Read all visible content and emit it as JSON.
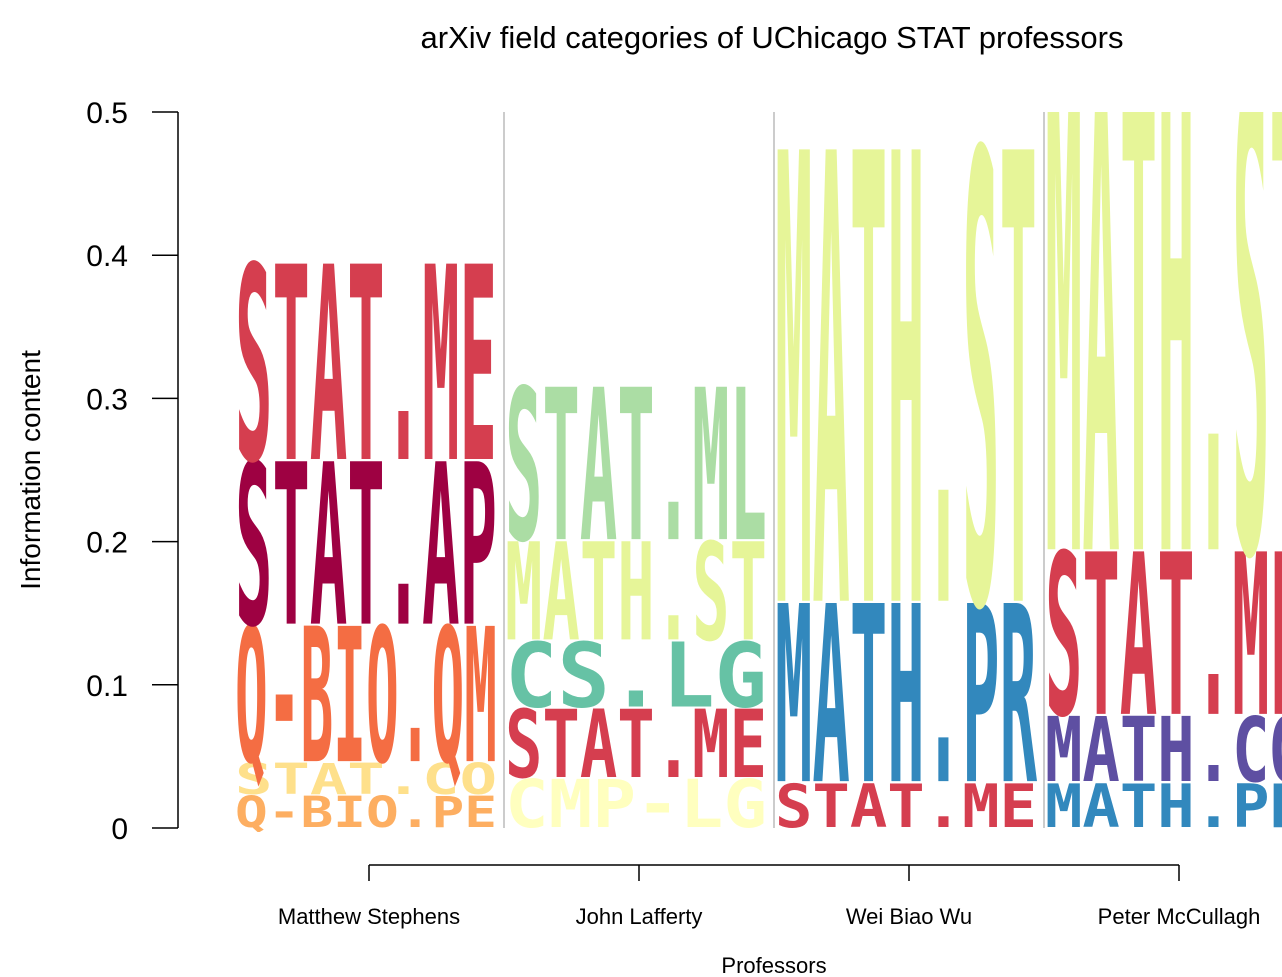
{
  "chart_data": {
    "type": "logo",
    "title": "arXiv field categories of UChicago STAT professors",
    "x_label": "Professors",
    "y_label": "Information content",
    "ylim": [
      0,
      0.5
    ],
    "yticks": [
      0,
      0.1,
      0.2,
      0.3,
      0.4,
      0.5
    ],
    "categories": [
      "Matthew Stephens",
      "John Lafferty",
      "Wei Biao Wu",
      "Peter McCullagh"
    ],
    "stacks": [
      [
        {
          "name": "Q-BIO.PE",
          "color": "#fdae61",
          "value": 0.023
        },
        {
          "name": "STAT.CO",
          "color": "#fee08b",
          "value": 0.023
        },
        {
          "name": "Q-BIO.QM",
          "color": "#f46d43",
          "value": 0.096
        },
        {
          "name": "STAT.AP",
          "color": "#9e0142",
          "value": 0.115
        },
        {
          "name": "STAT.ME",
          "color": "#d53e4f",
          "value": 0.138
        }
      ],
      [
        {
          "name": "CMP-LG",
          "color": "#ffffbf",
          "value": 0.035
        },
        {
          "name": "STAT.ME",
          "color": "#d53e4f",
          "value": 0.049
        },
        {
          "name": "CS.LG",
          "color": "#66c2a5",
          "value": 0.047
        },
        {
          "name": "MATH.ST",
          "color": "#e6f598",
          "value": 0.07
        },
        {
          "name": "STAT.ML",
          "color": "#abdda4",
          "value": 0.108
        }
      ],
      [
        {
          "name": "STAT.ME",
          "color": "#d53e4f",
          "value": 0.032
        },
        {
          "name": "MATH.PR",
          "color": "#3288bd",
          "value": 0.126
        },
        {
          "name": "MATH.ST",
          "color": "#e6f598",
          "value": 0.317
        }
      ],
      [
        {
          "name": "MATH.PR",
          "color": "#3288bd",
          "value": 0.032
        },
        {
          "name": "MATH.CO",
          "color": "#5e4fa2",
          "value": 0.047
        },
        {
          "name": "STAT.ME",
          "color": "#d53e4f",
          "value": 0.115
        },
        {
          "name": "MATH.ST",
          "color": "#e6f598",
          "value": 0.33
        }
      ]
    ]
  }
}
